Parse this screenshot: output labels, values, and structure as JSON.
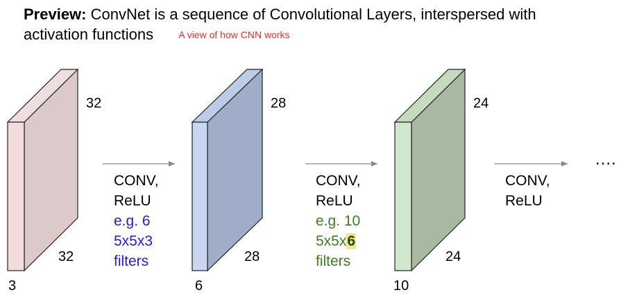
{
  "header": {
    "bold_label": "Preview:",
    "text_line1": " ConvNet is a sequence of Convolutional Layers, interspersed with",
    "text_line2": "activation functions",
    "caption": "A view of how CNN works"
  },
  "volumes": [
    {
      "width": "32",
      "height": "32",
      "depth": "3",
      "color": "#dcc9c9",
      "front_color": "#f4dcdc"
    },
    {
      "width": "28",
      "height": "28",
      "depth": "6",
      "color": "#9fadc8",
      "front_color": "#c8d6f2"
    },
    {
      "width": "24",
      "height": "24",
      "depth": "10",
      "color": "#a9b9a1",
      "front_color": "#d2e8cc"
    }
  ],
  "operations": [
    {
      "op_line1": "CONV,",
      "op_line2": "ReLU",
      "ex_line1": "e.g. 6",
      "ex_line2": "5x5x3",
      "ex_line3": "filters"
    },
    {
      "op_line1": "CONV,",
      "op_line2": "ReLU",
      "ex_line1": "e.g. 10",
      "ex_line2_prefix": "5x5x",
      "ex_line2_highlight": "6",
      "ex_line3": "filters"
    },
    {
      "op_line1": "CONV,",
      "op_line2": "ReLU"
    }
  ],
  "continuation": "...."
}
